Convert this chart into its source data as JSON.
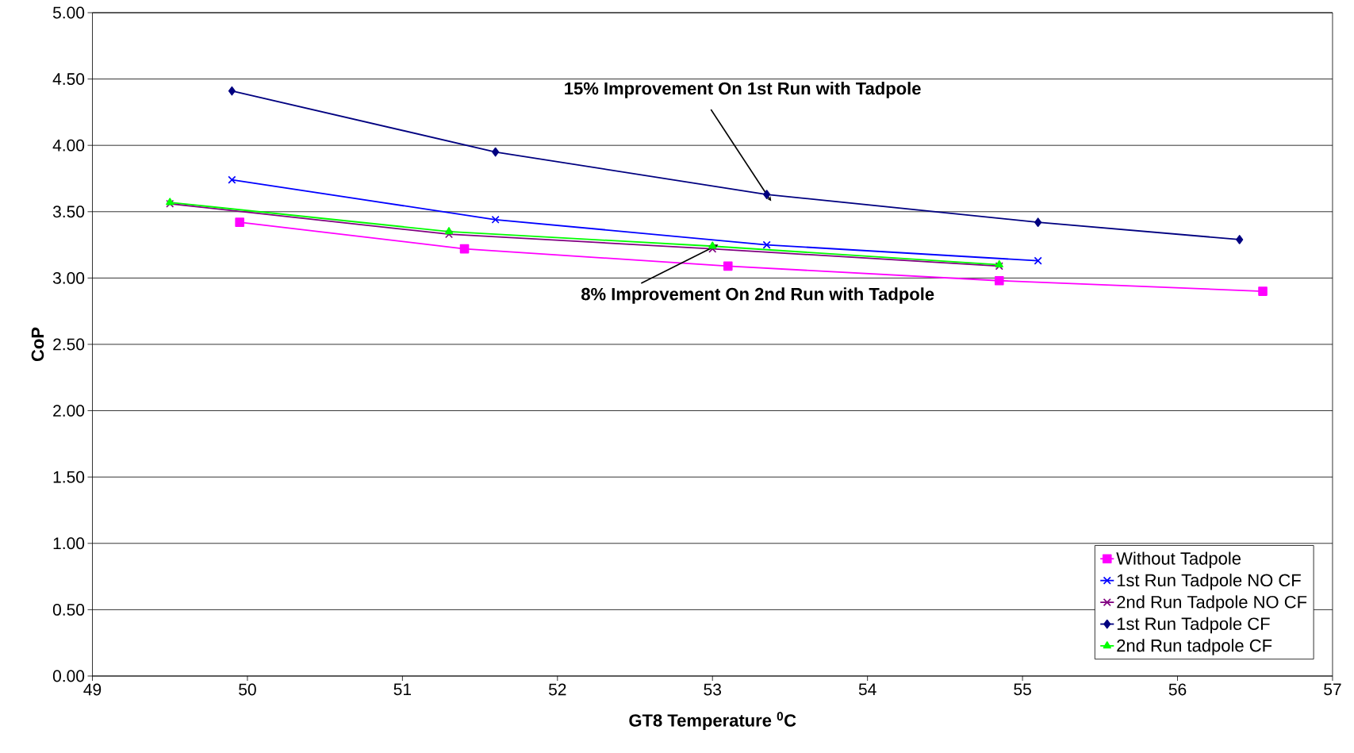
{
  "chart_data": {
    "type": "line",
    "xlabel": "GT8 Temperature $^{0}$C",
    "ylabel": "CoP",
    "xlim": [
      49,
      57
    ],
    "xticks": [
      49,
      50,
      51,
      52,
      53,
      54,
      55,
      56,
      57
    ],
    "ylim": [
      0,
      5
    ],
    "yticks": [
      {
        "value": 0,
        "label": "0.00"
      },
      {
        "value": 0.5,
        "label": "0.50"
      },
      {
        "value": 1,
        "label": "1.00"
      },
      {
        "value": 1.5,
        "label": "1.50"
      },
      {
        "value": 2,
        "label": "2.00"
      },
      {
        "value": 2.5,
        "label": "2.50"
      },
      {
        "value": 3,
        "label": "3.00"
      },
      {
        "value": 3.5,
        "label": "3.50"
      },
      {
        "value": 4,
        "label": "4.00"
      },
      {
        "value": 4.5,
        "label": "4.50"
      },
      {
        "value": 5,
        "label": "5.00"
      }
    ],
    "grid": "y",
    "legend": "bottom right",
    "series": [
      {
        "name": "Without Tadpole",
        "color": "#ff00ff",
        "marker": "square",
        "x": [
          49.95,
          51.4,
          53.1,
          54.85,
          56.55
        ],
        "values": [
          3.42,
          3.22,
          3.09,
          2.98,
          2.9
        ]
      },
      {
        "name": "1st Run Tadpole NO CF",
        "color": "#0000ff",
        "marker": "cross",
        "x": [
          49.9,
          51.6,
          53.35,
          55.1
        ],
        "values": [
          3.74,
          3.44,
          3.25,
          3.13
        ]
      },
      {
        "name": "2nd Run Tadpole NO CF",
        "color": "#800080",
        "marker": "cross",
        "x": [
          49.5,
          51.3,
          53.0,
          54.85
        ],
        "values": [
          3.56,
          3.33,
          3.22,
          3.09
        ]
      },
      {
        "name": "1st Run Tadpole CF",
        "color": "#000080",
        "marker": "diamond",
        "x": [
          49.9,
          51.6,
          53.35,
          55.1,
          56.4
        ],
        "values": [
          4.41,
          3.95,
          3.63,
          3.42,
          3.29
        ]
      },
      {
        "name": "2nd Run tadpole CF",
        "color": "#00ff00",
        "marker": "triangle",
        "x": [
          49.5,
          51.3,
          53.0,
          54.85
        ],
        "values": [
          3.57,
          3.35,
          3.24,
          3.1
        ]
      }
    ],
    "annotations": [
      {
        "text": "15% Improvement On 1st Run with Tadpole",
        "x": 53.35,
        "y": 3.63
      },
      {
        "text": "8% Improvement On 2nd Run with Tadpole",
        "x": 53.0,
        "y": 3.23
      }
    ]
  }
}
